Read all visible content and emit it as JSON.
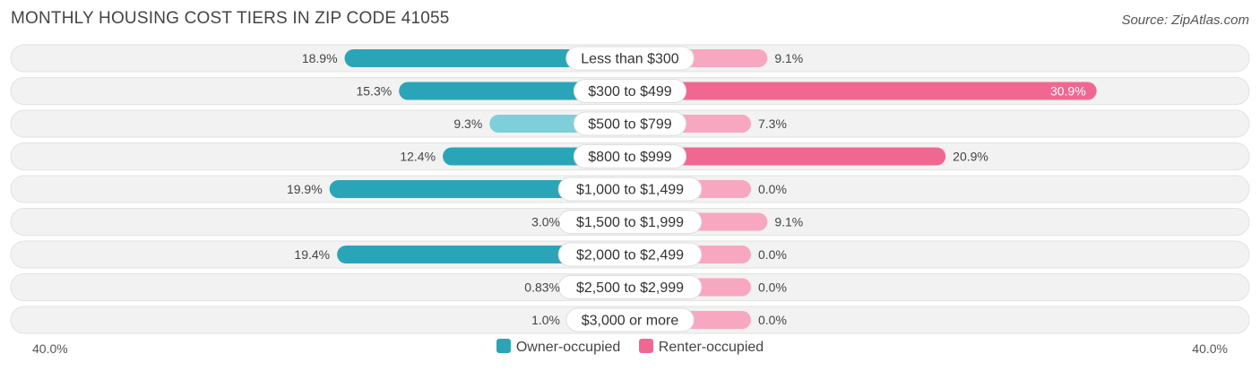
{
  "title": "MONTHLY HOUSING COST TIERS IN ZIP CODE 41055",
  "source": "Source: ZipAtlas.com",
  "colors": {
    "owner": "#2aa5b8",
    "owner_light": "#7ecfd9",
    "renter": "#f06892",
    "renter_light": "#f7a8c0",
    "track": "#efefef"
  },
  "chart_data": {
    "type": "bar",
    "orientation": "horizontal-diverging",
    "categories": [
      "Less than $300",
      "$300 to $499",
      "$500 to $799",
      "$800 to $999",
      "$1,000 to $1,499",
      "$1,500 to $1,999",
      "$2,000 to $2,499",
      "$2,500 to $2,999",
      "$3,000 or more"
    ],
    "series": [
      {
        "name": "Owner-occupied",
        "values": [
          18.9,
          15.3,
          9.3,
          12.4,
          19.9,
          3.0,
          19.4,
          0.83,
          1.0
        ],
        "labels": [
          "18.9%",
          "15.3%",
          "9.3%",
          "12.4%",
          "19.9%",
          "3.0%",
          "19.4%",
          "0.83%",
          "1.0%"
        ]
      },
      {
        "name": "Renter-occupied",
        "values": [
          9.1,
          30.9,
          7.3,
          20.9,
          0.0,
          9.1,
          0.0,
          0.0,
          0.0
        ],
        "labels": [
          "9.1%",
          "30.9%",
          "7.3%",
          "20.9%",
          "0.0%",
          "9.1%",
          "0.0%",
          "0.0%",
          "0.0%"
        ]
      }
    ],
    "xlim": [
      -40,
      40
    ],
    "axis_left_label": "40.0%",
    "axis_right_label": "40.0%",
    "legend_position": "bottom-center"
  }
}
